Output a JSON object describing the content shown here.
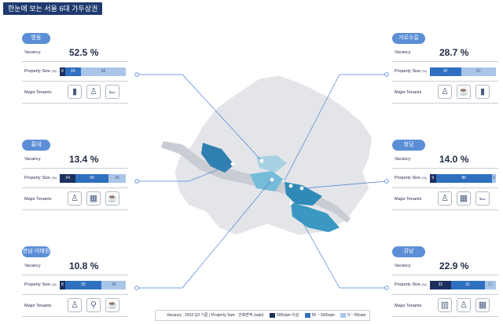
{
  "title": "한눈에 보는 서울 6대 가두상권",
  "labels": {
    "vacancy": "Vacancy",
    "property_size": "Property Size",
    "property_unit": "(%)",
    "tenants": "Major Tenants"
  },
  "legend": {
    "prefix": "Vacancy : 2022 Q2 기준",
    "separator": "|",
    "size_label": "Property Size : 건축면적 (sqm)",
    "items": [
      {
        "label": "500sqm 이상",
        "color": "#1c2f5e"
      },
      {
        "label": "50 ~ 500sqm",
        "color": "#2f6fbf"
      },
      {
        "label": "0 ~ 50sqm",
        "color": "#a9c6e8"
      }
    ]
  },
  "chart_data": {
    "type": "table",
    "title": "한눈에 보는 서울 6대 가두상권",
    "districts": [
      {
        "name": "명동",
        "vacancy": "52.5 %",
        "size": [
          8,
          24,
          68
        ],
        "tenants": [
          "cosmetics-icon",
          "dress-icon",
          "heel-icon"
        ]
      },
      {
        "name": "홍대",
        "vacancy": "13.4 %",
        "size": [
          24,
          50,
          26
        ],
        "tenants": [
          "dress-icon",
          "store-icon",
          "cafe-icon"
        ]
      },
      {
        "name": "한남·이태원",
        "vacancy": "10.8 %",
        "size": [
          8,
          55,
          36
        ],
        "tenants": [
          "dress-icon",
          "dining-icon",
          "cafe-icon"
        ]
      },
      {
        "name": "가로수길",
        "vacancy": "28.7 %",
        "size": [
          0,
          47,
          52
        ],
        "tenants": [
          "dress-icon",
          "cafe-icon",
          "cosmetics-icon"
        ]
      },
      {
        "name": "청담",
        "vacancy": "14.0 %",
        "size": [
          9,
          85,
          6
        ],
        "tenants": [
          "dress-icon",
          "store-icon",
          "heel-icon"
        ]
      },
      {
        "name": "강남",
        "vacancy": "22.9 %",
        "size": [
          32,
          51,
          17
        ],
        "tenants": [
          "building-icon",
          "dress-icon",
          "store-icon"
        ]
      }
    ]
  }
}
